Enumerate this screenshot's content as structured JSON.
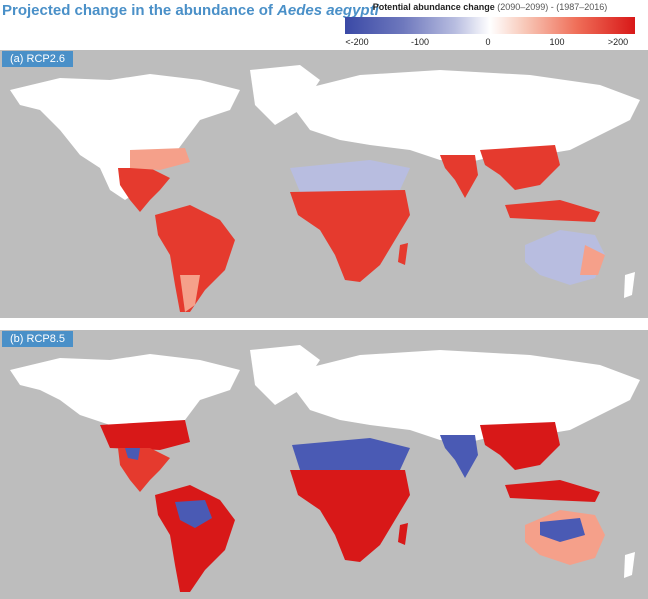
{
  "title": {
    "prefix": "Projected change in the abundance of ",
    "species": "Aedes aegypti"
  },
  "legend": {
    "label": "Potential abundance change",
    "period": " (2090–2099) - (1987–2016)",
    "ticks": [
      "<-200",
      "-100",
      "0",
      "100",
      ">200"
    ],
    "colors": {
      "low": "#3a49a6",
      "mid": "#ffffff",
      "high": "#d81818"
    }
  },
  "panels": [
    {
      "label": "(a) RCP2.6"
    },
    {
      "label": "(b) RCP8.5"
    }
  ],
  "colors": {
    "ocean": "#bdbdbd",
    "land_no_change": "#ffffff",
    "increase": "#e53a2e",
    "strong_increase": "#d81818",
    "decrease": "#4a5ab4",
    "mild_increase": "#f5a08a",
    "mild_decrease": "#b8bde0"
  }
}
